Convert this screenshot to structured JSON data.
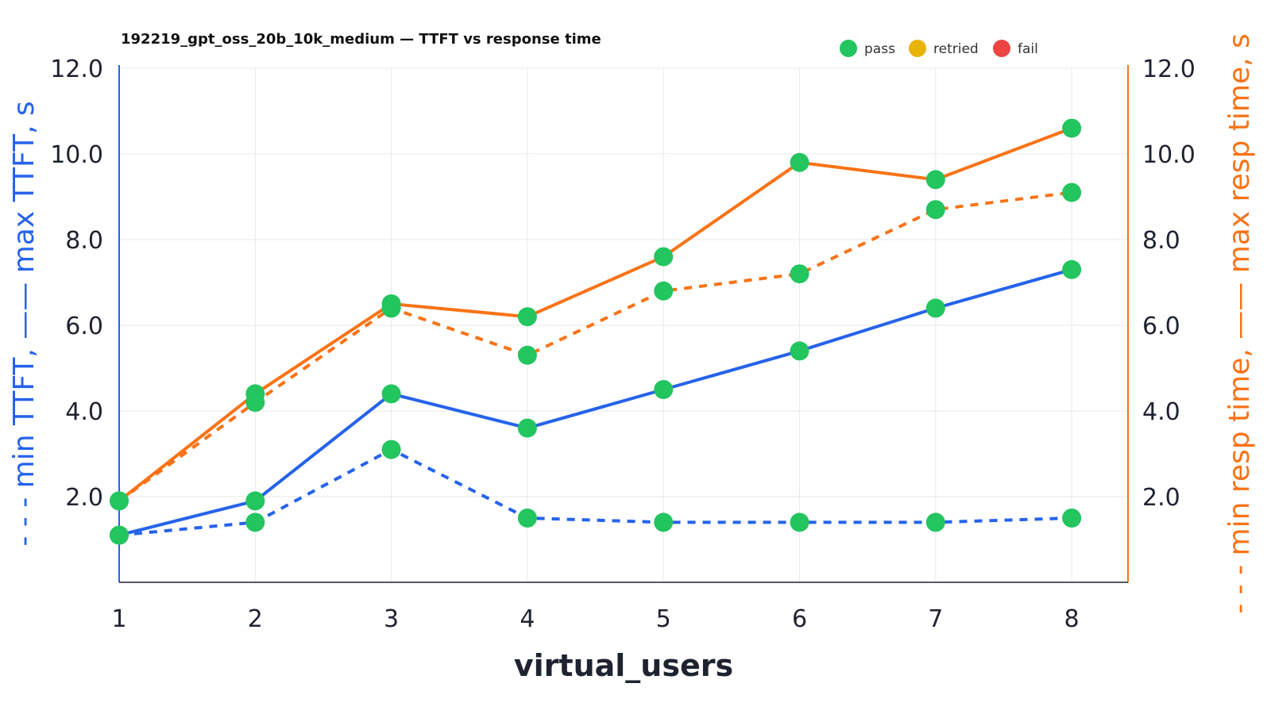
{
  "chart_data": {
    "type": "line",
    "title": "192219_gpt_oss_20b_10k_medium — TTFT vs response time",
    "xlabel": "virtual_users",
    "ylabel_left": "- - - min TTFT, —— max TTFT, s",
    "ylabel_right": "- - - min resp time, —— max resp time, s",
    "x": [
      1,
      2,
      3,
      4,
      5,
      6,
      7,
      8
    ],
    "x_tick_labels": [
      "1",
      "2",
      "3",
      "4",
      "5",
      "6",
      "7",
      "8"
    ],
    "ylim": [
      0,
      12
    ],
    "y_ticks_left": [
      "2.0",
      "4.0",
      "6.0",
      "8.0",
      "10.0",
      "12.0"
    ],
    "y_ticks_right": [
      "2.0",
      "4.0",
      "6.0",
      "8.0",
      "10.0",
      "12.0"
    ],
    "grid": true,
    "legend_position": "top-right",
    "legend": [
      {
        "label": "pass",
        "color": "#22c55e"
      },
      {
        "label": "retried",
        "color": "#eab308"
      },
      {
        "label": "fail",
        "color": "#ef4444"
      }
    ],
    "series": [
      {
        "name": "min TTFT",
        "axis": "left",
        "style": "dashed",
        "color": "#2563eb",
        "values": [
          1.1,
          1.4,
          3.1,
          1.5,
          1.4,
          1.4,
          1.4,
          1.5
        ],
        "status": [
          "pass",
          "pass",
          "pass",
          "pass",
          "pass",
          "pass",
          "pass",
          "pass"
        ]
      },
      {
        "name": "max TTFT",
        "axis": "left",
        "style": "solid",
        "color": "#2563eb",
        "values": [
          1.1,
          1.9,
          4.4,
          3.6,
          4.5,
          5.4,
          6.4,
          7.3
        ],
        "status": [
          "pass",
          "pass",
          "pass",
          "pass",
          "pass",
          "pass",
          "pass",
          "pass"
        ]
      },
      {
        "name": "min resp time",
        "axis": "right",
        "style": "dashed",
        "color": "#f97316",
        "values": [
          1.9,
          4.2,
          6.4,
          5.3,
          6.8,
          7.2,
          8.7,
          9.1
        ],
        "status": [
          "pass",
          "pass",
          "pass",
          "pass",
          "pass",
          "pass",
          "pass",
          "pass"
        ]
      },
      {
        "name": "max resp time",
        "axis": "right",
        "style": "solid",
        "color": "#f97316",
        "values": [
          1.9,
          4.4,
          6.5,
          6.2,
          7.6,
          9.8,
          9.4,
          10.6
        ],
        "status": [
          "pass",
          "pass",
          "pass",
          "pass",
          "pass",
          "pass",
          "pass",
          "pass"
        ]
      }
    ],
    "colors": {
      "left_axis": "#2563eb",
      "right_axis": "#f97316",
      "grid": "#e9e9ee",
      "pass": "#22c55e",
      "retried": "#eab308",
      "fail": "#ef4444"
    }
  }
}
